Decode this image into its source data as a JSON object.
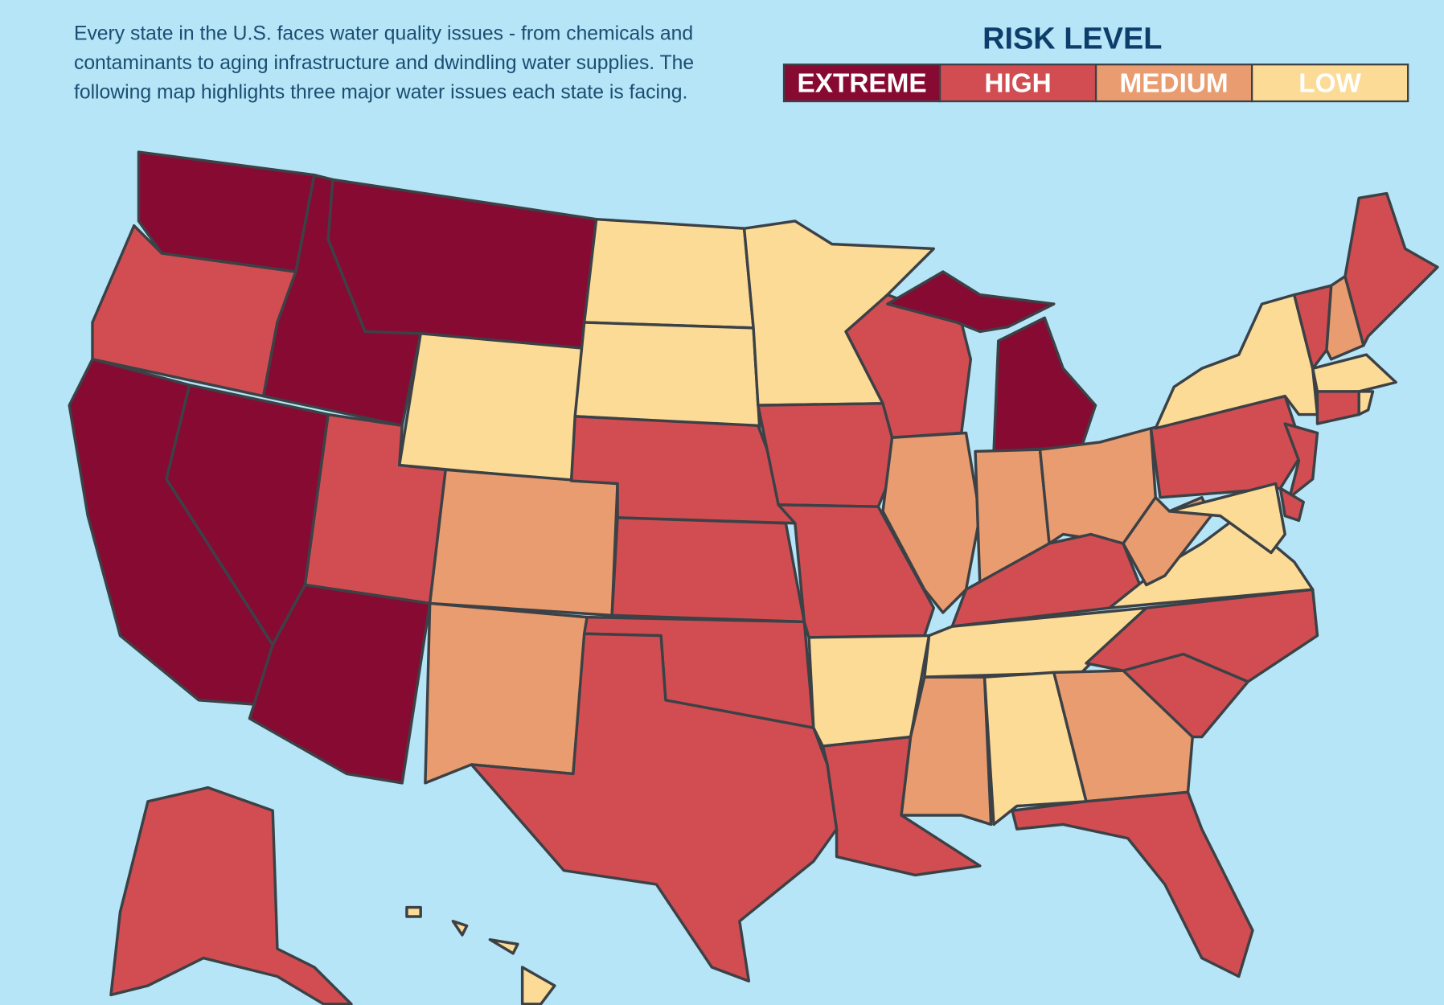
{
  "description": {
    "lines": [
      "Every state in the U.S. faces water quality issues - from chemicals and",
      "contaminants to aging infrastructure and dwindling water supplies. The",
      "following map highlights three major water issues each state is facing."
    ]
  },
  "legend": {
    "title": "RISK LEVEL",
    "items": [
      {
        "label": "EXTREME",
        "color": "#870a33"
      },
      {
        "label": "HIGH",
        "color": "#d24d52"
      },
      {
        "label": "MEDIUM",
        "color": "#e99c6f"
      },
      {
        "label": "LOW",
        "color": "#fcdb97"
      }
    ]
  }
}
